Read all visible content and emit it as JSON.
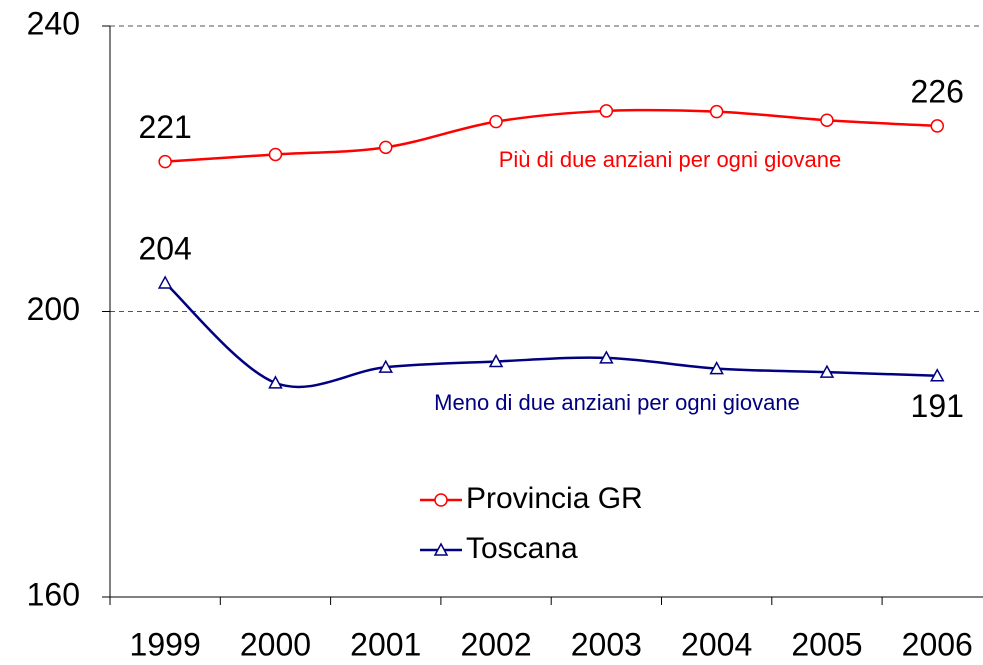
{
  "chart_data": {
    "type": "line",
    "categories": [
      "1999",
      "2000",
      "2001",
      "2002",
      "2003",
      "2004",
      "2005",
      "2006"
    ],
    "series": [
      {
        "name": "Provincia GR",
        "color": "#ff0000",
        "marker": "circle",
        "values": [
          221,
          222.0,
          223.0,
          226.6,
          228.1,
          228.0,
          226.8,
          226
        ],
        "value_labels": [
          "221",
          null,
          null,
          null,
          null,
          null,
          null,
          "226"
        ]
      },
      {
        "name": "Toscana",
        "color": "#000080",
        "marker": "triangle",
        "values": [
          204,
          190.0,
          192.2,
          193.0,
          193.5,
          192.0,
          191.5,
          191
        ],
        "value_labels": [
          "204",
          null,
          null,
          null,
          null,
          null,
          null,
          "191"
        ]
      }
    ],
    "annotations": [
      "Più di due anziani per ogni giovane",
      "Meno di due anziani per ogni giovane"
    ],
    "ylim": [
      160,
      240
    ],
    "yticks": [
      160,
      200,
      240
    ],
    "grid": true,
    "smooth": true
  }
}
